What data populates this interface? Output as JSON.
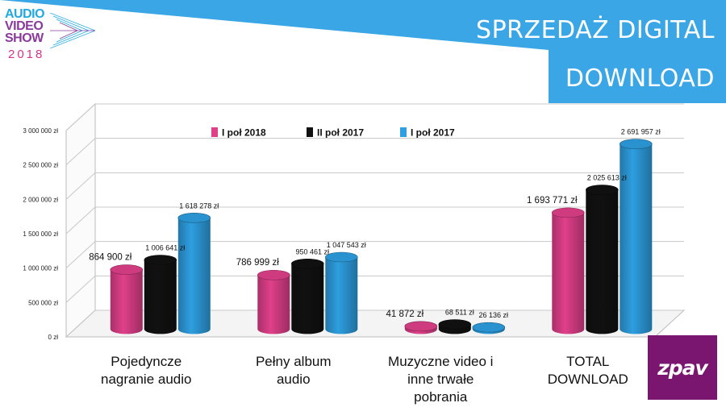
{
  "header": {
    "title_line1": "SPRZEDAŻ DIGITAL",
    "title_line2": "DOWNLOAD",
    "banner_color": "#3aa6e6"
  },
  "logo": {
    "line1": "AUDIO",
    "line2": "VIDEO",
    "line3": "SHOW",
    "year": "2018"
  },
  "badge": {
    "text": "zpav",
    "color": "#7a1670"
  },
  "chart_data": {
    "type": "bar",
    "title": "",
    "xlabel": "",
    "ylabel": "",
    "ylim": [
      0,
      3000000
    ],
    "yticks": [
      0,
      500000,
      1000000,
      1500000,
      2000000,
      2500000,
      3000000
    ],
    "ytick_labels": [
      "0 zł",
      "500 000 zł",
      "1 000 000 zł",
      "1 500 000 zł",
      "2 000 000 zł",
      "2 500 000 zł",
      "3 000 000 zł"
    ],
    "grid": true,
    "legend_position": "top-center",
    "categories": [
      [
        "Pojedyncze",
        "nagranie audio"
      ],
      [
        "Pełny album",
        "audio"
      ],
      [
        "Muzyczne video i",
        "inne trwałe",
        "pobrania"
      ],
      [
        "TOTAL",
        "DOWNLOAD"
      ]
    ],
    "series": [
      {
        "name": "I poł 2018",
        "color": "#e0408a",
        "values": [
          864900,
          786999,
          41872,
          1693771
        ],
        "labels": [
          "864 900 zł",
          "786 999 zł",
          "41 872 zł",
          "1 693 771 zł"
        ]
      },
      {
        "name": "II poł 2017",
        "color": "#111111",
        "values": [
          1006641,
          950461,
          68511,
          2025613
        ],
        "labels": [
          "1 006 641 zł",
          "950 461 zł",
          "68 511 zł",
          "2 025 613 zł"
        ]
      },
      {
        "name": "I poł 2017",
        "color": "#2e9fe0",
        "values": [
          1618278,
          1047543,
          26136,
          2691957
        ],
        "labels": [
          "1 618 278 zł",
          "1 047 543 zł",
          "26 136 zł",
          "2 691 957 zł"
        ]
      }
    ]
  }
}
